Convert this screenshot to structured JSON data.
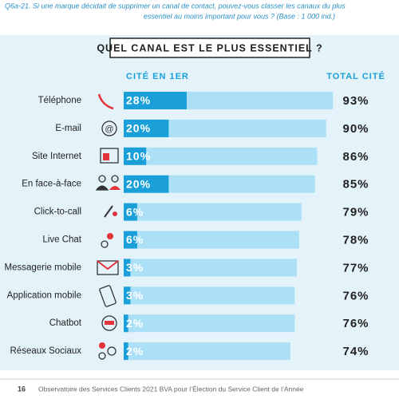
{
  "chart_data": {
    "type": "bar",
    "subtitle": [
      "Q6a-21. Si une marque décidait de supprimer un canal de contact, pouvez-vous classer les canaux du plus",
      "essentiel au moins important pour vous ? (Base : 1 000 ind.)"
    ],
    "title": "QUEL CANAL EST LE PLUS ESSENTIEL ?",
    "categories": [
      "Téléphone",
      "E-mail",
      "Site Internet",
      "En face-à-face",
      "Click-to-call",
      "Live Chat",
      "Messagerie mobile",
      "Application mobile",
      "Chatbot",
      "Réseaux Sociaux"
    ],
    "series": [
      {
        "name": "CITÉ EN 1ER",
        "color": "#1a9fd9",
        "values": [
          28,
          20,
          10,
          20,
          6,
          6,
          3,
          3,
          2,
          2
        ],
        "value_labels": [
          "28%",
          "20%",
          "10%",
          "20%",
          "6%",
          "6%",
          "3%",
          "3%",
          "2%",
          "2%"
        ]
      },
      {
        "name": "TOTAL CITÉ",
        "color": "#ace0f6",
        "values": [
          93,
          90,
          86,
          85,
          79,
          78,
          77,
          76,
          76,
          74
        ],
        "value_labels": [
          "93%",
          "90%",
          "86%",
          "85%",
          "79%",
          "78%",
          "77%",
          "76%",
          "76%",
          "74%"
        ]
      }
    ]
  },
  "footer": {
    "page": "16",
    "text": "Observatoire des Services Clients 2021 BVA pour l’Élection du Service Client de l’Année"
  }
}
